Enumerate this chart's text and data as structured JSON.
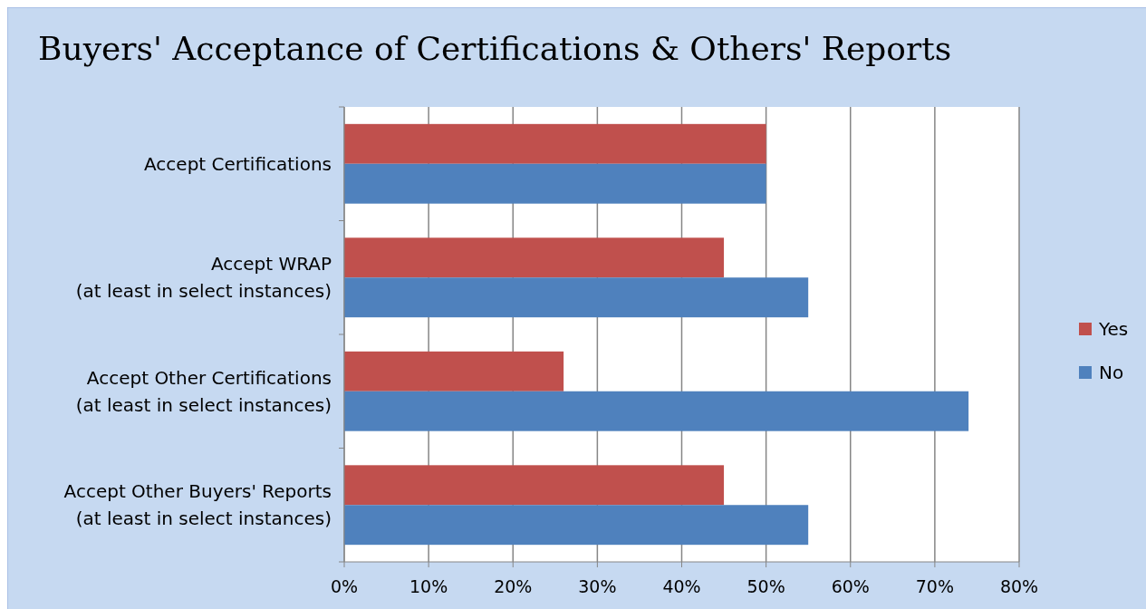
{
  "chart_data": {
    "type": "bar",
    "orientation": "horizontal",
    "title": "Buyers' Acceptance of Certifications & Others' Reports",
    "categories": [
      "Accept Certifications",
      "Accept WRAP\n(at least in select instances)",
      "Accept Other Certifications\n(at least in select instances)",
      "Accept Other Buyers' Reports\n(at least in select instances)"
    ],
    "series": [
      {
        "name": "Yes",
        "color": "#c0504d",
        "values": [
          50,
          45,
          26,
          45
        ]
      },
      {
        "name": "No",
        "color": "#4f81bd",
        "values": [
          50,
          55,
          74,
          55
        ]
      }
    ],
    "xlim": [
      0,
      80
    ],
    "xticks": [
      {
        "value": 0,
        "label": "0%"
      },
      {
        "value": 10,
        "label": "10%"
      },
      {
        "value": 20,
        "label": "20%"
      },
      {
        "value": 30,
        "label": "30%"
      },
      {
        "value": 40,
        "label": "40%"
      },
      {
        "value": 50,
        "label": "50%"
      },
      {
        "value": 60,
        "label": "60%"
      },
      {
        "value": 70,
        "label": "70%"
      },
      {
        "value": 80,
        "label": "80%"
      }
    ],
    "grid": "x",
    "legend": "right"
  }
}
